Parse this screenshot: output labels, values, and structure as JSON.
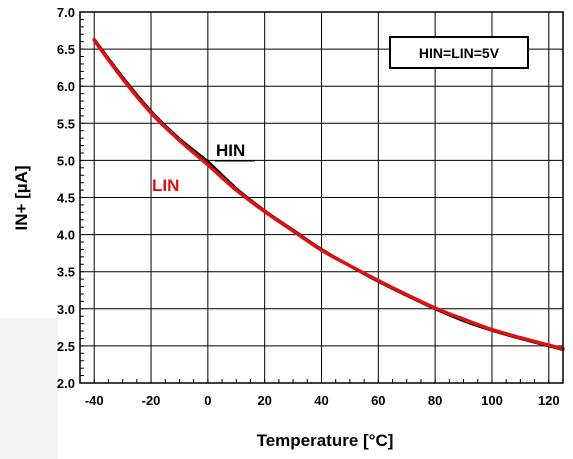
{
  "chart_data": {
    "type": "line",
    "title": "",
    "xlabel": "Temperature [°C]",
    "ylabel": "IN+ [µA]",
    "xlim": [
      -45,
      125
    ],
    "ylim": [
      2.0,
      7.0
    ],
    "xticks": [
      -40,
      -20,
      0,
      20,
      40,
      60,
      80,
      100,
      120
    ],
    "xtick_labels": [
      "-40",
      "-20",
      "0",
      "20",
      "40",
      "60",
      "80",
      "100",
      "120"
    ],
    "yticks": [
      2.0,
      2.5,
      3.0,
      3.5,
      4.0,
      4.5,
      5.0,
      5.5,
      6.0,
      6.5,
      7.0
    ],
    "ytick_labels": [
      "2.0",
      "2.5",
      "3.0",
      "3.5",
      "4.0",
      "4.5",
      "5.0",
      "5.5",
      "6.0",
      "6.5",
      "7.0"
    ],
    "grid": true,
    "legend_box": "HIN=LIN=5V",
    "series": [
      {
        "name": "HIN",
        "color": "#000000",
        "x": [
          -40,
          -30,
          -20,
          -10,
          0,
          10,
          20,
          30,
          40,
          50,
          60,
          70,
          80,
          90,
          100,
          110,
          125
        ],
        "y": [
          6.63,
          6.12,
          5.66,
          5.29,
          4.98,
          4.62,
          4.32,
          4.06,
          3.8,
          3.58,
          3.37,
          3.18,
          3.0,
          2.84,
          2.71,
          2.6,
          2.45
        ]
      },
      {
        "name": "LIN",
        "color": "#e01010",
        "x": [
          -40,
          -30,
          -20,
          -10,
          0,
          10,
          20,
          30,
          40,
          50,
          60,
          70,
          80,
          90,
          100,
          110,
          125
        ],
        "y": [
          6.62,
          6.1,
          5.64,
          5.27,
          4.94,
          4.6,
          4.31,
          4.05,
          3.79,
          3.58,
          3.38,
          3.19,
          3.01,
          2.86,
          2.72,
          2.61,
          2.46
        ]
      }
    ],
    "annotations": [
      {
        "text": "HIN",
        "color": "#000000"
      },
      {
        "text": "LIN",
        "color": "#e01010"
      }
    ]
  }
}
